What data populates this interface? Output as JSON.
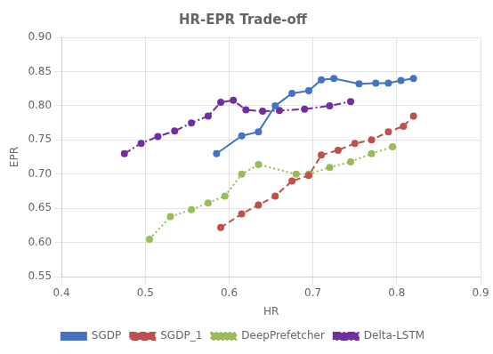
{
  "chart_data": {
    "type": "line",
    "title": "HR-EPR Trade-off",
    "x_label": "HR",
    "y_label": "EPR",
    "xlim": [
      0.4,
      0.9
    ],
    "ylim": [
      0.55,
      0.9
    ],
    "xticks": [
      0.4,
      0.5,
      0.6,
      0.7,
      0.8,
      0.9
    ],
    "yticks": [
      0.55,
      {
        "value": 0.6,
        "label": "0.60"
      },
      0.65,
      {
        "value": 0.7,
        "label": "0.70"
      },
      0.75,
      {
        "value": 0.8,
        "label": "0.80"
      },
      0.85,
      {
        "value": 0.9,
        "label": "0.90"
      }
    ],
    "grid": true,
    "legend": "bottom",
    "series": [
      {
        "name": "SGDP",
        "color": "#4472C4",
        "line_style": "solid",
        "marker": "circle",
        "x": [
          0.585,
          0.615,
          0.635,
          0.655,
          0.675,
          0.695,
          0.71,
          0.725,
          0.755,
          0.775,
          0.79,
          0.805,
          0.82
        ],
        "values": [
          0.73,
          0.756,
          0.762,
          0.8,
          0.818,
          0.822,
          0.838,
          0.84,
          0.832,
          0.833,
          0.833,
          0.837,
          0.84
        ]
      },
      {
        "name": "SGDP_1",
        "color": "#C0504D",
        "line_style": "dashed",
        "marker": "circle",
        "x": [
          0.59,
          0.615,
          0.635,
          0.655,
          0.675,
          0.695,
          0.71,
          0.73,
          0.75,
          0.77,
          0.79,
          0.808,
          0.82
        ],
        "values": [
          0.622,
          0.642,
          0.655,
          0.668,
          0.69,
          0.698,
          0.728,
          0.735,
          0.745,
          0.75,
          0.762,
          0.77,
          0.785
        ]
      },
      {
        "name": "DeepPrefetcher",
        "color": "#9BBB59",
        "line_style": "dotted",
        "marker": "circle",
        "x": [
          0.505,
          0.53,
          0.555,
          0.575,
          0.595,
          0.615,
          0.635,
          0.68,
          0.695,
          0.72,
          0.745,
          0.77,
          0.795
        ],
        "values": [
          0.605,
          0.638,
          0.648,
          0.658,
          0.668,
          0.7,
          0.714,
          0.7,
          0.7,
          0.71,
          0.718,
          0.73,
          0.74
        ]
      },
      {
        "name": "Delta-LSTM",
        "color": "#7030A0",
        "line_style": "dashdot",
        "marker": "circle",
        "x": [
          0.475,
          0.495,
          0.515,
          0.535,
          0.555,
          0.575,
          0.59,
          0.605,
          0.62,
          0.64,
          0.66,
          0.69,
          0.72,
          0.745
        ],
        "values": [
          0.73,
          0.745,
          0.755,
          0.763,
          0.775,
          0.785,
          0.805,
          0.808,
          0.794,
          0.792,
          0.793,
          0.795,
          0.8,
          0.806
        ]
      }
    ]
  }
}
